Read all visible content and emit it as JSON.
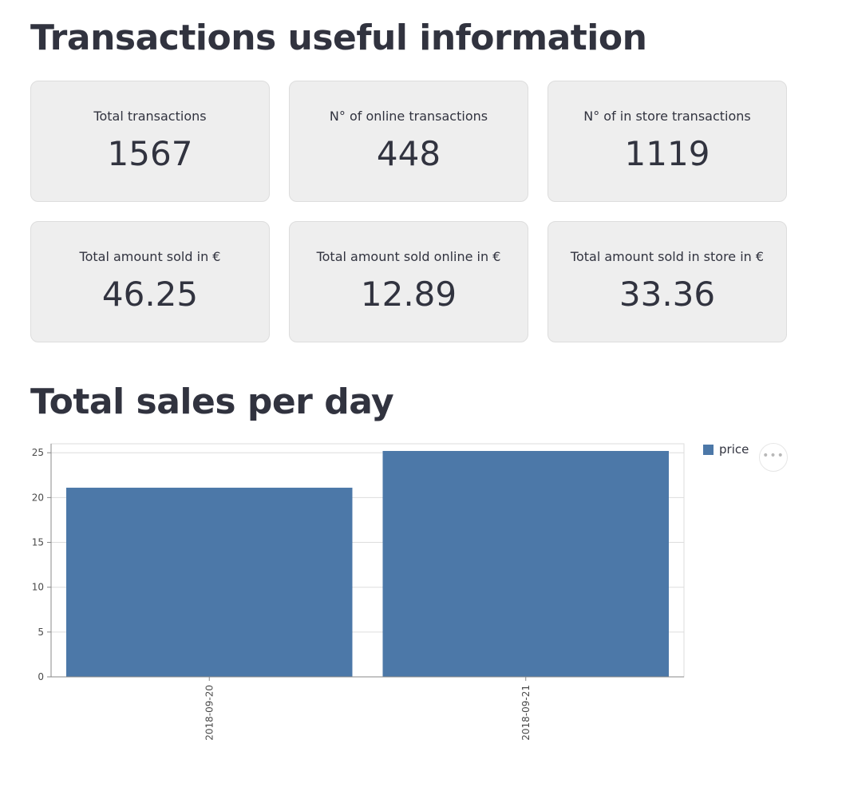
{
  "page": {
    "title": "Transactions useful information",
    "chart_title": "Total sales per day"
  },
  "metrics": [
    {
      "label": "Total transactions",
      "value": "1567"
    },
    {
      "label": "N° of online transactions",
      "value": "448"
    },
    {
      "label": "N° of in store transactions",
      "value": "1119"
    },
    {
      "label": "Total amount sold in €",
      "value": "46.25"
    },
    {
      "label": "Total amount sold online in €",
      "value": "12.89"
    },
    {
      "label": "Total amount sold in store in €",
      "value": "33.36"
    }
  ],
  "chart_menu": {
    "icon": "more-horizontal-icon"
  },
  "colors": {
    "bar": "#4c78a8",
    "card_bg": "#eeeeee",
    "text": "#31333f"
  },
  "chart_data": {
    "type": "bar",
    "categories": [
      "2018-09-20",
      "2018-09-21"
    ],
    "series": [
      {
        "name": "price",
        "values": [
          21.1,
          25.2
        ]
      }
    ],
    "xlabel": "",
    "ylabel": "",
    "ylim": [
      0,
      26
    ],
    "yticks": [
      0,
      5,
      10,
      15,
      20,
      25
    ],
    "grid": true,
    "legend": "top-right"
  }
}
